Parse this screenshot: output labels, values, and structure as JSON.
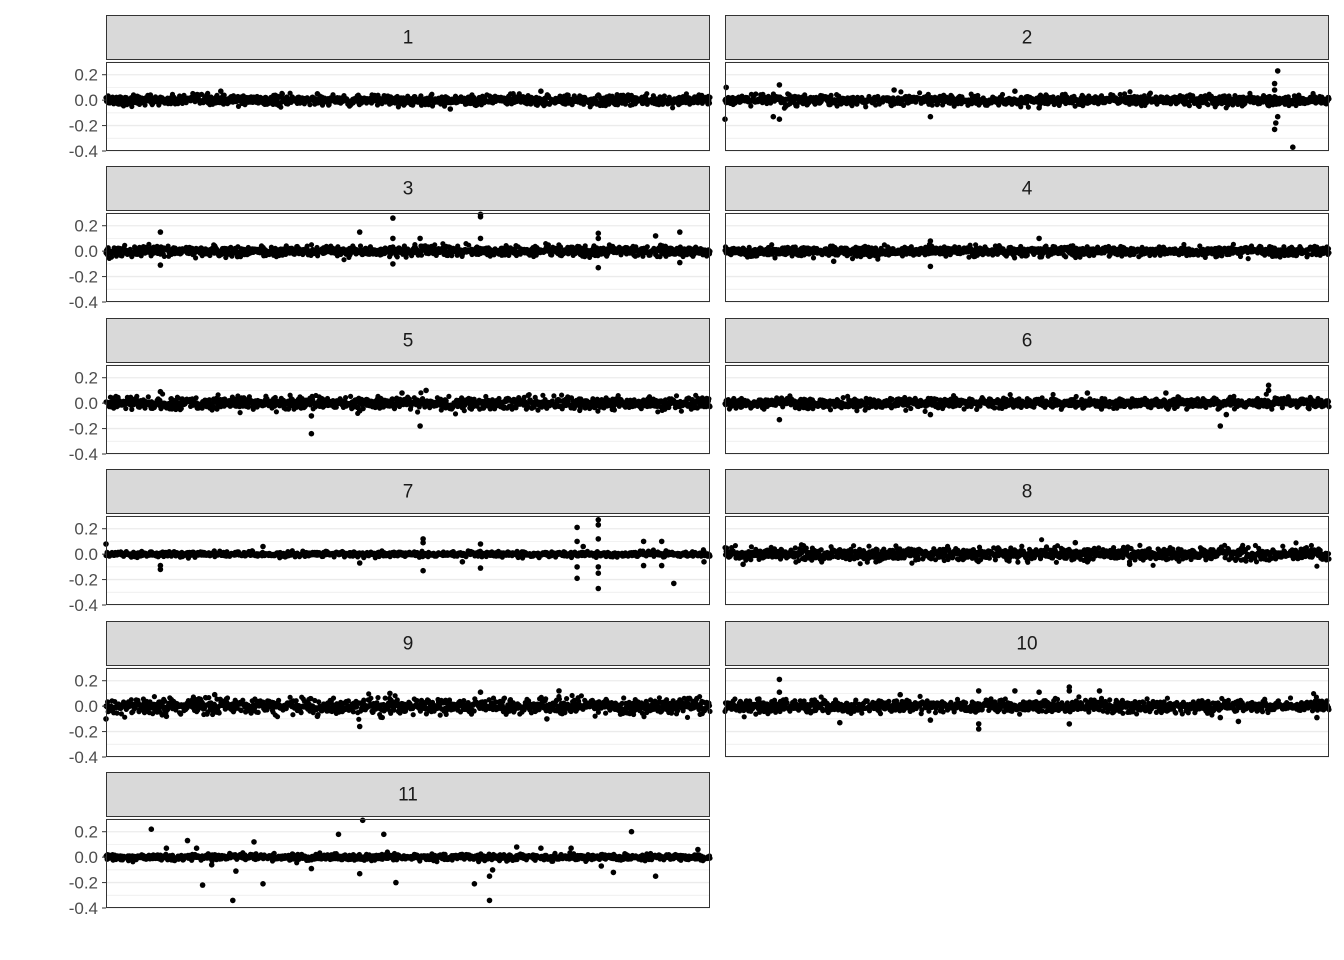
{
  "chart_data": {
    "type": "scatter",
    "title": "",
    "xlabel": "",
    "ylabel": "",
    "ylim": [
      -0.4,
      0.3
    ],
    "y_ticks": [
      0.2,
      0.0,
      -0.2,
      -0.4
    ],
    "y_tick_labels": [
      "0.2",
      "0.0",
      "-0.2",
      "-0.4"
    ],
    "x_axis_visible": false,
    "grid": true,
    "legend": "none",
    "facet_layout": {
      "columns": 2,
      "rows": 6
    },
    "point_color": "#000000",
    "strip_fill": "#d9d9d9",
    "panels": [
      {
        "label": "1",
        "base_noise": 0.02,
        "outliers": [
          {
            "x": 0.19,
            "y": 0.07
          },
          {
            "x": 0.57,
            "y": -0.07
          },
          {
            "x": 0.72,
            "y": 0.07
          },
          {
            "x": 0.35,
            "y": 0.05
          }
        ]
      },
      {
        "label": "2",
        "base_noise": 0.02,
        "outliers": [
          {
            "x": 0.09,
            "y": 0.12
          },
          {
            "x": 0.08,
            "y": -0.13
          },
          {
            "x": 0.09,
            "y": -0.15
          },
          {
            "x": 0.34,
            "y": -0.13
          },
          {
            "x": 0.52,
            "y": -0.06
          },
          {
            "x": 0.28,
            "y": 0.08
          },
          {
            "x": 0.48,
            "y": 0.07
          },
          {
            "x": 0.91,
            "y": 0.08
          },
          {
            "x": 0.915,
            "y": 0.23
          },
          {
            "x": 0.91,
            "y": 0.13
          },
          {
            "x": 0.915,
            "y": -0.13
          },
          {
            "x": 0.912,
            "y": -0.18
          },
          {
            "x": 0.91,
            "y": -0.23
          },
          {
            "x": 0.94,
            "y": -0.37
          },
          {
            "x": 0.0,
            "y": -0.15
          },
          {
            "x": 0.002,
            "y": 0.1
          }
        ]
      },
      {
        "label": "3",
        "base_noise": 0.02,
        "outliers": [
          {
            "x": 0.09,
            "y": 0.15
          },
          {
            "x": 0.09,
            "y": -0.11
          },
          {
            "x": 0.42,
            "y": 0.15
          },
          {
            "x": 0.475,
            "y": 0.26
          },
          {
            "x": 0.475,
            "y": 0.1
          },
          {
            "x": 0.475,
            "y": -0.1
          },
          {
            "x": 0.52,
            "y": 0.1
          },
          {
            "x": 0.62,
            "y": 0.29
          },
          {
            "x": 0.62,
            "y": 0.27
          },
          {
            "x": 0.62,
            "y": 0.1
          },
          {
            "x": 0.815,
            "y": 0.14
          },
          {
            "x": 0.815,
            "y": -0.13
          },
          {
            "x": 0.815,
            "y": 0.1
          },
          {
            "x": 0.91,
            "y": 0.12
          },
          {
            "x": 0.95,
            "y": 0.15
          },
          {
            "x": 0.95,
            "y": -0.09
          }
        ]
      },
      {
        "label": "4",
        "base_noise": 0.02,
        "outliers": [
          {
            "x": 0.34,
            "y": 0.08
          },
          {
            "x": 0.34,
            "y": -0.12
          },
          {
            "x": 0.52,
            "y": 0.1
          },
          {
            "x": 0.18,
            "y": -0.08
          }
        ]
      },
      {
        "label": "5",
        "base_noise": 0.025,
        "outliers": [
          {
            "x": 0.09,
            "y": 0.09
          },
          {
            "x": 0.34,
            "y": -0.24
          },
          {
            "x": 0.34,
            "y": -0.1
          },
          {
            "x": 0.52,
            "y": -0.18
          },
          {
            "x": 0.53,
            "y": 0.1
          },
          {
            "x": 0.42,
            "y": -0.06
          },
          {
            "x": 0.49,
            "y": 0.08
          }
        ]
      },
      {
        "label": "6",
        "base_noise": 0.02,
        "outliers": [
          {
            "x": 0.09,
            "y": -0.13
          },
          {
            "x": 0.34,
            "y": -0.09
          },
          {
            "x": 0.82,
            "y": -0.18
          },
          {
            "x": 0.83,
            "y": -0.09
          },
          {
            "x": 0.9,
            "y": 0.14
          },
          {
            "x": 0.9,
            "y": 0.1
          },
          {
            "x": 0.6,
            "y": 0.08
          },
          {
            "x": 0.73,
            "y": 0.08
          }
        ]
      },
      {
        "label": "7",
        "base_noise": 0.01,
        "outliers": [
          {
            "x": 0.09,
            "y": -0.12
          },
          {
            "x": 0.09,
            "y": -0.09
          },
          {
            "x": 0.26,
            "y": 0.06
          },
          {
            "x": 0.42,
            "y": -0.07
          },
          {
            "x": 0.525,
            "y": 0.12
          },
          {
            "x": 0.525,
            "y": -0.13
          },
          {
            "x": 0.525,
            "y": 0.09
          },
          {
            "x": 0.59,
            "y": -0.06
          },
          {
            "x": 0.62,
            "y": -0.11
          },
          {
            "x": 0.62,
            "y": 0.08
          },
          {
            "x": 0.78,
            "y": 0.21
          },
          {
            "x": 0.78,
            "y": 0.1
          },
          {
            "x": 0.78,
            "y": -0.19
          },
          {
            "x": 0.78,
            "y": -0.1
          },
          {
            "x": 0.815,
            "y": 0.27
          },
          {
            "x": 0.815,
            "y": 0.23
          },
          {
            "x": 0.815,
            "y": 0.12
          },
          {
            "x": 0.815,
            "y": -0.27
          },
          {
            "x": 0.815,
            "y": -0.15
          },
          {
            "x": 0.815,
            "y": -0.1
          },
          {
            "x": 0.79,
            "y": 0.06
          },
          {
            "x": 0.89,
            "y": 0.1
          },
          {
            "x": 0.89,
            "y": -0.09
          },
          {
            "x": 0.92,
            "y": -0.09
          },
          {
            "x": 0.92,
            "y": 0.1
          },
          {
            "x": 0.94,
            "y": -0.23
          },
          {
            "x": 0.99,
            "y": -0.06
          },
          {
            "x": 0.0,
            "y": 0.08
          }
        ]
      },
      {
        "label": "8",
        "base_noise": 0.025,
        "outliers": [
          {
            "x": 0.03,
            "y": -0.08
          },
          {
            "x": 0.58,
            "y": 0.09
          },
          {
            "x": 0.6,
            "y": -0.06
          },
          {
            "x": 0.67,
            "y": -0.08
          },
          {
            "x": 0.25,
            "y": -0.06
          }
        ]
      },
      {
        "label": "9",
        "base_noise": 0.03,
        "outliers": [
          {
            "x": 0.42,
            "y": -0.16
          },
          {
            "x": 0.47,
            "y": 0.1
          },
          {
            "x": 0.62,
            "y": 0.11
          },
          {
            "x": 0.75,
            "y": 0.12
          },
          {
            "x": 0.73,
            "y": -0.1
          },
          {
            "x": 0.35,
            "y": -0.08
          },
          {
            "x": 0.18,
            "y": 0.09
          },
          {
            "x": 0.1,
            "y": -0.08
          },
          {
            "x": 0.0,
            "y": -0.1
          }
        ]
      },
      {
        "label": "10",
        "base_noise": 0.025,
        "outliers": [
          {
            "x": 0.09,
            "y": 0.21
          },
          {
            "x": 0.09,
            "y": 0.11
          },
          {
            "x": 0.19,
            "y": -0.13
          },
          {
            "x": 0.34,
            "y": -0.11
          },
          {
            "x": 0.42,
            "y": 0.12
          },
          {
            "x": 0.42,
            "y": -0.14
          },
          {
            "x": 0.42,
            "y": -0.18
          },
          {
            "x": 0.48,
            "y": 0.12
          },
          {
            "x": 0.52,
            "y": 0.11
          },
          {
            "x": 0.57,
            "y": 0.15
          },
          {
            "x": 0.57,
            "y": 0.12
          },
          {
            "x": 0.57,
            "y": -0.14
          },
          {
            "x": 0.62,
            "y": 0.12
          },
          {
            "x": 0.82,
            "y": -0.09
          },
          {
            "x": 0.85,
            "y": -0.12
          },
          {
            "x": 0.98,
            "y": -0.09
          },
          {
            "x": 0.29,
            "y": 0.09
          }
        ]
      },
      {
        "label": "11",
        "base_noise": 0.012,
        "outliers": [
          {
            "x": 0.075,
            "y": 0.22
          },
          {
            "x": 0.1,
            "y": 0.07
          },
          {
            "x": 0.135,
            "y": 0.13
          },
          {
            "x": 0.15,
            "y": 0.07
          },
          {
            "x": 0.16,
            "y": -0.22
          },
          {
            "x": 0.175,
            "y": -0.06
          },
          {
            "x": 0.21,
            "y": -0.34
          },
          {
            "x": 0.215,
            "y": -0.11
          },
          {
            "x": 0.245,
            "y": 0.12
          },
          {
            "x": 0.26,
            "y": -0.21
          },
          {
            "x": 0.34,
            "y": -0.09
          },
          {
            "x": 0.385,
            "y": 0.18
          },
          {
            "x": 0.425,
            "y": 0.29
          },
          {
            "x": 0.42,
            "y": -0.13
          },
          {
            "x": 0.46,
            "y": 0.18
          },
          {
            "x": 0.48,
            "y": -0.2
          },
          {
            "x": 0.61,
            "y": -0.21
          },
          {
            "x": 0.635,
            "y": -0.15
          },
          {
            "x": 0.635,
            "y": -0.34
          },
          {
            "x": 0.64,
            "y": -0.1
          },
          {
            "x": 0.68,
            "y": 0.08
          },
          {
            "x": 0.72,
            "y": 0.07
          },
          {
            "x": 0.77,
            "y": 0.07
          },
          {
            "x": 0.82,
            "y": -0.07
          },
          {
            "x": 0.84,
            "y": -0.12
          },
          {
            "x": 0.87,
            "y": 0.2
          },
          {
            "x": 0.91,
            "y": -0.15
          },
          {
            "x": 0.98,
            "y": 0.06
          }
        ]
      }
    ]
  }
}
